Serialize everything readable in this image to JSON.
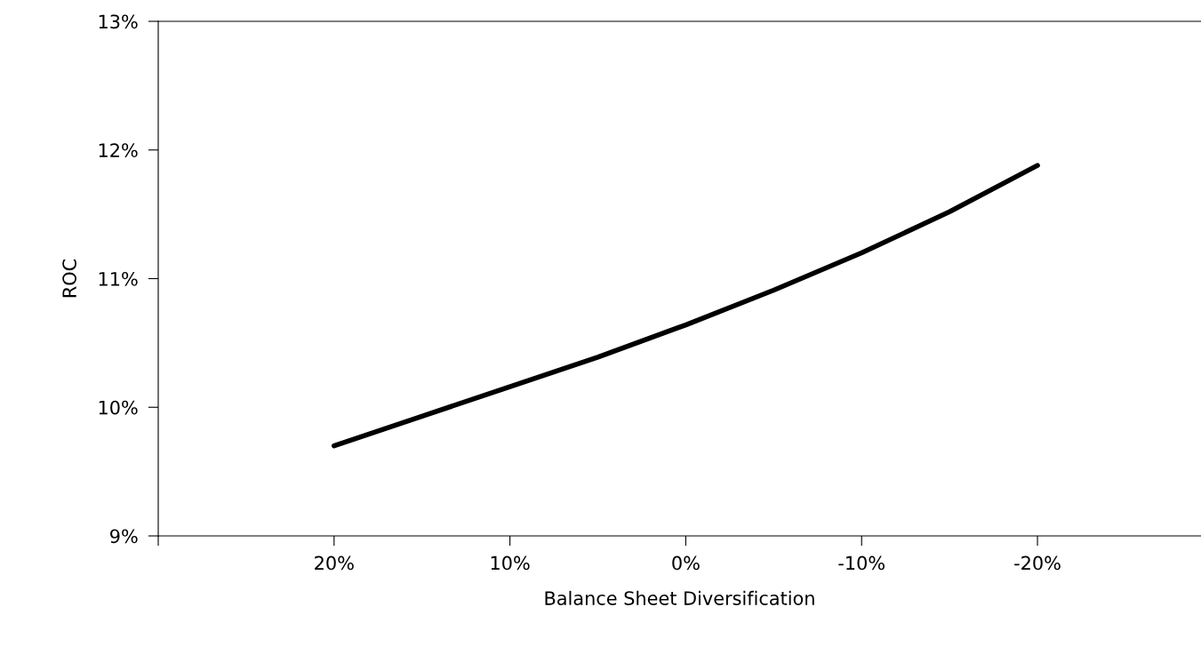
{
  "chart_data": {
    "type": "line",
    "xlabel": "Balance Sheet Diversification",
    "ylabel": "ROC",
    "x": [
      20,
      15,
      10,
      5,
      0,
      -5,
      -10,
      -15,
      -20
    ],
    "series": [
      {
        "color": "#000000",
        "values": [
          9.7,
          9.93,
          10.16,
          10.39,
          10.64,
          10.91,
          11.2,
          11.52,
          11.88
        ]
      }
    ],
    "xlim": [
      30,
      -29.3
    ],
    "xticks": [
      {
        "value": 30,
        "label": null
      },
      {
        "value": 20,
        "label": "20%"
      },
      {
        "value": 10,
        "label": "10%"
      },
      {
        "value": 0,
        "label": "0%"
      },
      {
        "value": -10,
        "label": "-10%"
      },
      {
        "value": -20,
        "label": "-20%"
      }
    ],
    "ylim": [
      9,
      13
    ],
    "yticks": [
      {
        "value": 9,
        "label": "9%"
      },
      {
        "value": 10,
        "label": "10%"
      },
      {
        "value": 11,
        "label": "11%"
      },
      {
        "value": 12,
        "label": "12%"
      },
      {
        "value": 13,
        "label": "13%"
      }
    ],
    "grid": false,
    "legend": false,
    "marker": "none",
    "line_style": "solid"
  }
}
